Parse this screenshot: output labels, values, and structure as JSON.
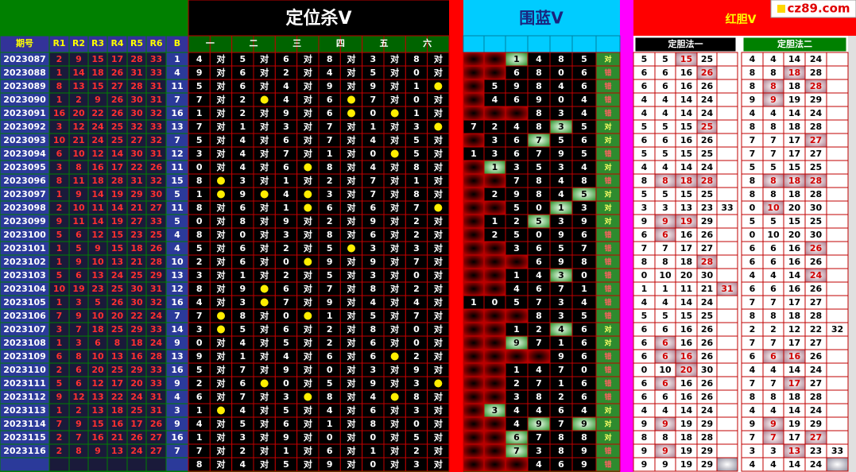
{
  "site": "cz89.com",
  "columns": {
    "period": "期号",
    "reds": [
      "R1",
      "R2",
      "R3",
      "R4",
      "R5",
      "R6"
    ],
    "blue": "B"
  },
  "draws": [
    {
      "period": "2023087",
      "reds": [
        2,
        9,
        15,
        17,
        28,
        33
      ],
      "blue": 1
    },
    {
      "period": "2023088",
      "reds": [
        1,
        14,
        18,
        26,
        31,
        33
      ],
      "blue": 4
    },
    {
      "period": "2023089",
      "reds": [
        8,
        13,
        15,
        27,
        28,
        31
      ],
      "blue": 11
    },
    {
      "period": "2023090",
      "reds": [
        1,
        2,
        9,
        26,
        30,
        31
      ],
      "blue": 7
    },
    {
      "period": "2023091",
      "reds": [
        16,
        20,
        22,
        26,
        30,
        32
      ],
      "blue": 16
    },
    {
      "period": "2023092",
      "reds": [
        3,
        12,
        24,
        25,
        32,
        33
      ],
      "blue": 13
    },
    {
      "period": "2023093",
      "reds": [
        10,
        21,
        24,
        25,
        27,
        32
      ],
      "blue": 7
    },
    {
      "period": "2023094",
      "reds": [
        6,
        10,
        12,
        14,
        30,
        31
      ],
      "blue": 12
    },
    {
      "period": "2023095",
      "reds": [
        3,
        8,
        16,
        17,
        22,
        26
      ],
      "blue": 11
    },
    {
      "period": "2023096",
      "reds": [
        8,
        11,
        18,
        28,
        31,
        32
      ],
      "blue": 15
    },
    {
      "period": "2023097",
      "reds": [
        1,
        9,
        14,
        19,
        29,
        30
      ],
      "blue": 5
    },
    {
      "period": "2023098",
      "reds": [
        2,
        10,
        11,
        14,
        21,
        27
      ],
      "blue": 11
    },
    {
      "period": "2023099",
      "reds": [
        9,
        11,
        14,
        19,
        27,
        33
      ],
      "blue": 5
    },
    {
      "period": "2023100",
      "reds": [
        5,
        6,
        12,
        15,
        23,
        25
      ],
      "blue": 4
    },
    {
      "period": "2023101",
      "reds": [
        1,
        5,
        9,
        15,
        18,
        26
      ],
      "blue": 4
    },
    {
      "period": "2023102",
      "reds": [
        1,
        9,
        10,
        13,
        21,
        28
      ],
      "blue": 10
    },
    {
      "period": "2023103",
      "reds": [
        5,
        6,
        13,
        24,
        25,
        29
      ],
      "blue": 13
    },
    {
      "period": "2023104",
      "reds": [
        10,
        19,
        23,
        25,
        30,
        31
      ],
      "blue": 12
    },
    {
      "period": "2023105",
      "reds": [
        1,
        3,
        5,
        26,
        30,
        32
      ],
      "blue": 16
    },
    {
      "period": "2023106",
      "reds": [
        7,
        9,
        10,
        20,
        22,
        24
      ],
      "blue": 7
    },
    {
      "period": "2023107",
      "reds": [
        3,
        7,
        18,
        25,
        29,
        33
      ],
      "blue": 14
    },
    {
      "period": "2023108",
      "reds": [
        1,
        3,
        6,
        8,
        18,
        24
      ],
      "blue": 9
    },
    {
      "period": "2023109",
      "reds": [
        6,
        8,
        10,
        13,
        16,
        28
      ],
      "blue": 13
    },
    {
      "period": "2023110",
      "reds": [
        2,
        6,
        20,
        25,
        29,
        33
      ],
      "blue": 16
    },
    {
      "period": "2023111",
      "reds": [
        5,
        6,
        12,
        17,
        20,
        33
      ],
      "blue": 9
    },
    {
      "period": "2023112",
      "reds": [
        9,
        12,
        13,
        22,
        24,
        31
      ],
      "blue": 4
    },
    {
      "period": "2023113",
      "reds": [
        1,
        2,
        13,
        18,
        25,
        31
      ],
      "blue": 3
    },
    {
      "period": "2023114",
      "reds": [
        7,
        9,
        15,
        16,
        17,
        26
      ],
      "blue": 9
    },
    {
      "period": "2023115",
      "reds": [
        2,
        7,
        16,
        21,
        26,
        27
      ],
      "blue": 16
    },
    {
      "period": "2023116",
      "reds": [
        2,
        8,
        9,
        13,
        24,
        27
      ],
      "blue": 7
    }
  ],
  "dingwei": {
    "title": "定位杀V",
    "cols": [
      "一",
      "二",
      "三",
      "四",
      "五",
      "六"
    ],
    "hit": "对",
    "rows": [
      [
        4,
        5,
        6,
        8,
        3,
        8
      ],
      [
        9,
        6,
        2,
        4,
        5,
        0
      ],
      [
        5,
        6,
        4,
        9,
        9,
        1
      ],
      [
        7,
        2,
        4,
        6,
        7,
        0
      ],
      [
        1,
        2,
        9,
        6,
        0,
        1
      ],
      [
        7,
        1,
        3,
        7,
        1,
        3
      ],
      [
        5,
        4,
        6,
        7,
        4,
        5
      ],
      [
        3,
        4,
        7,
        1,
        0,
        5
      ],
      [
        0,
        4,
        6,
        8,
        4,
        8
      ],
      [
        8,
        3,
        1,
        2,
        7,
        1
      ],
      [
        1,
        9,
        4,
        3,
        7,
        8
      ],
      [
        8,
        6,
        1,
        6,
        6,
        7
      ],
      [
        0,
        8,
        9,
        2,
        9,
        2
      ],
      [
        8,
        0,
        3,
        8,
        6,
        2
      ],
      [
        5,
        6,
        2,
        5,
        3,
        3
      ],
      [
        2,
        6,
        0,
        9,
        9,
        7
      ],
      [
        3,
        1,
        2,
        5,
        3,
        0
      ],
      [
        8,
        9,
        6,
        7,
        8,
        2
      ],
      [
        4,
        3,
        7,
        9,
        4,
        4
      ],
      [
        7,
        8,
        0,
        1,
        5,
        7
      ],
      [
        3,
        5,
        6,
        2,
        8,
        0
      ],
      [
        0,
        4,
        5,
        2,
        6,
        0
      ],
      [
        9,
        1,
        4,
        6,
        6,
        2
      ],
      [
        5,
        7,
        9,
        0,
        3,
        9
      ],
      [
        2,
        6,
        0,
        5,
        9,
        3
      ],
      [
        6,
        7,
        3,
        8,
        4,
        8
      ],
      [
        1,
        4,
        5,
        4,
        6,
        3
      ],
      [
        4,
        5,
        6,
        1,
        8,
        0
      ],
      [
        1,
        3,
        9,
        0,
        0,
        5
      ],
      [
        7,
        2,
        1,
        6,
        1,
        2
      ],
      [
        8,
        4,
        5,
        9,
        0,
        3
      ]
    ]
  },
  "weilan": {
    "title": "围蓝V",
    "rows": [
      {
        "nums": [
          null,
          null,
          1,
          4,
          8,
          5
        ],
        "result": "对"
      },
      {
        "nums": [
          null,
          null,
          6,
          8,
          0,
          6
        ],
        "result": "错"
      },
      {
        "nums": [
          null,
          5,
          9,
          8,
          4,
          6
        ],
        "result": "错"
      },
      {
        "nums": [
          null,
          4,
          6,
          9,
          0,
          4
        ],
        "result": "错"
      },
      {
        "nums": [
          null,
          null,
          null,
          8,
          3,
          4
        ],
        "result": "错"
      },
      {
        "nums": [
          7,
          2,
          4,
          8,
          3,
          5
        ],
        "result": "对"
      },
      {
        "nums": [
          null,
          3,
          6,
          7,
          5,
          6
        ],
        "result": "对"
      },
      {
        "nums": [
          1,
          3,
          6,
          7,
          9,
          5
        ],
        "result": "错"
      },
      {
        "nums": [
          null,
          1,
          3,
          5,
          3,
          4
        ],
        "result": "对"
      },
      {
        "nums": [
          null,
          null,
          7,
          8,
          4,
          8
        ],
        "result": "错"
      },
      {
        "nums": [
          null,
          2,
          9,
          8,
          4,
          5
        ],
        "result": "对"
      },
      {
        "nums": [
          null,
          null,
          5,
          0,
          1,
          3
        ],
        "result": "对"
      },
      {
        "nums": [
          null,
          1,
          2,
          5,
          3,
          9
        ],
        "result": "对"
      },
      {
        "nums": [
          null,
          2,
          5,
          0,
          9,
          6
        ],
        "result": "错"
      },
      {
        "nums": [
          null,
          null,
          3,
          6,
          5,
          7
        ],
        "result": "错"
      },
      {
        "nums": [
          null,
          null,
          null,
          6,
          9,
          8
        ],
        "result": "错"
      },
      {
        "nums": [
          null,
          null,
          1,
          4,
          3,
          0
        ],
        "result": "错"
      },
      {
        "nums": [
          null,
          null,
          4,
          6,
          7,
          1
        ],
        "result": "错"
      },
      {
        "nums": [
          1,
          0,
          5,
          7,
          3,
          4
        ],
        "result": "错"
      },
      {
        "nums": [
          null,
          null,
          null,
          8,
          3,
          5
        ],
        "result": "错"
      },
      {
        "nums": [
          null,
          null,
          1,
          2,
          4,
          6
        ],
        "result": "对"
      },
      {
        "nums": [
          null,
          null,
          9,
          7,
          1,
          6
        ],
        "result": "对"
      },
      {
        "nums": [
          null,
          null,
          null,
          null,
          9,
          6
        ],
        "result": "错"
      },
      {
        "nums": [
          null,
          null,
          1,
          4,
          7,
          0
        ],
        "result": "错"
      },
      {
        "nums": [
          null,
          null,
          2,
          7,
          1,
          6
        ],
        "result": "错"
      },
      {
        "nums": [
          null,
          null,
          3,
          8,
          2,
          6
        ],
        "result": "错"
      },
      {
        "nums": [
          null,
          3,
          4,
          4,
          6,
          4
        ],
        "result": "对"
      },
      {
        "nums": [
          null,
          null,
          4,
          9,
          7,
          9
        ],
        "result": "对"
      },
      {
        "nums": [
          null,
          null,
          6,
          7,
          8,
          8
        ],
        "result": "对"
      },
      {
        "nums": [
          null,
          null,
          7,
          3,
          8,
          9
        ],
        "result": "错"
      },
      {
        "nums": [
          null,
          null,
          null,
          4,
          6,
          9
        ],
        "result": "错"
      }
    ]
  },
  "hongdan": {
    "title": "红胆V",
    "methods": [
      {
        "name": "定胆法一",
        "rows": [
          [
            5,
            5,
            15,
            25,
            null
          ],
          [
            6,
            6,
            16,
            26,
            null
          ],
          [
            6,
            6,
            16,
            26,
            null
          ],
          [
            4,
            4,
            14,
            24,
            null
          ],
          [
            4,
            4,
            14,
            24,
            null
          ],
          [
            5,
            5,
            15,
            25,
            null
          ],
          [
            6,
            6,
            16,
            26,
            null
          ],
          [
            5,
            5,
            15,
            25,
            null
          ],
          [
            4,
            4,
            14,
            24,
            null
          ],
          [
            8,
            8,
            18,
            28,
            null
          ],
          [
            5,
            5,
            15,
            25,
            null
          ],
          [
            3,
            3,
            13,
            23,
            33
          ],
          [
            9,
            9,
            19,
            29,
            null
          ],
          [
            6,
            6,
            16,
            26,
            null
          ],
          [
            7,
            7,
            17,
            27,
            null
          ],
          [
            8,
            8,
            18,
            28,
            null
          ],
          [
            0,
            10,
            20,
            30,
            null
          ],
          [
            1,
            1,
            11,
            21,
            31
          ],
          [
            4,
            4,
            14,
            24,
            null
          ],
          [
            5,
            5,
            15,
            25,
            null
          ],
          [
            6,
            6,
            16,
            26,
            null
          ],
          [
            6,
            6,
            16,
            26,
            null
          ],
          [
            6,
            6,
            16,
            26,
            null
          ],
          [
            0,
            10,
            20,
            30,
            null
          ],
          [
            6,
            6,
            16,
            26,
            null
          ],
          [
            6,
            6,
            16,
            26,
            null
          ],
          [
            4,
            4,
            14,
            24,
            null
          ],
          [
            9,
            9,
            19,
            29,
            null
          ],
          [
            8,
            8,
            18,
            28,
            null
          ],
          [
            9,
            9,
            19,
            29,
            null
          ],
          [
            9,
            9,
            19,
            29,
            null
          ]
        ]
      },
      {
        "name": "定胆法二",
        "rows": [
          [
            4,
            4,
            14,
            24,
            null
          ],
          [
            8,
            8,
            18,
            28,
            null
          ],
          [
            8,
            8,
            18,
            28,
            null
          ],
          [
            9,
            9,
            19,
            29,
            null
          ],
          [
            4,
            4,
            14,
            24,
            null
          ],
          [
            8,
            8,
            18,
            28,
            null
          ],
          [
            7,
            7,
            17,
            27,
            null
          ],
          [
            7,
            7,
            17,
            27,
            null
          ],
          [
            5,
            5,
            15,
            25,
            null
          ],
          [
            8,
            8,
            18,
            28,
            null
          ],
          [
            8,
            8,
            18,
            28,
            null
          ],
          [
            0,
            10,
            20,
            30,
            null
          ],
          [
            5,
            5,
            15,
            25,
            null
          ],
          [
            0,
            10,
            20,
            30,
            null
          ],
          [
            6,
            6,
            16,
            26,
            null
          ],
          [
            6,
            6,
            16,
            26,
            null
          ],
          [
            4,
            4,
            14,
            24,
            null
          ],
          [
            6,
            6,
            16,
            26,
            null
          ],
          [
            7,
            7,
            17,
            27,
            null
          ],
          [
            8,
            8,
            18,
            28,
            null
          ],
          [
            2,
            2,
            12,
            22,
            32
          ],
          [
            7,
            7,
            17,
            27,
            null
          ],
          [
            6,
            6,
            16,
            26,
            null
          ],
          [
            4,
            4,
            14,
            24,
            null
          ],
          [
            7,
            7,
            17,
            27,
            null
          ],
          [
            8,
            8,
            18,
            28,
            null
          ],
          [
            4,
            4,
            14,
            24,
            null
          ],
          [
            9,
            9,
            19,
            29,
            null
          ],
          [
            7,
            7,
            17,
            27,
            null
          ],
          [
            3,
            3,
            13,
            23,
            33
          ],
          [
            4,
            4,
            14,
            24,
            null
          ]
        ]
      }
    ]
  }
}
